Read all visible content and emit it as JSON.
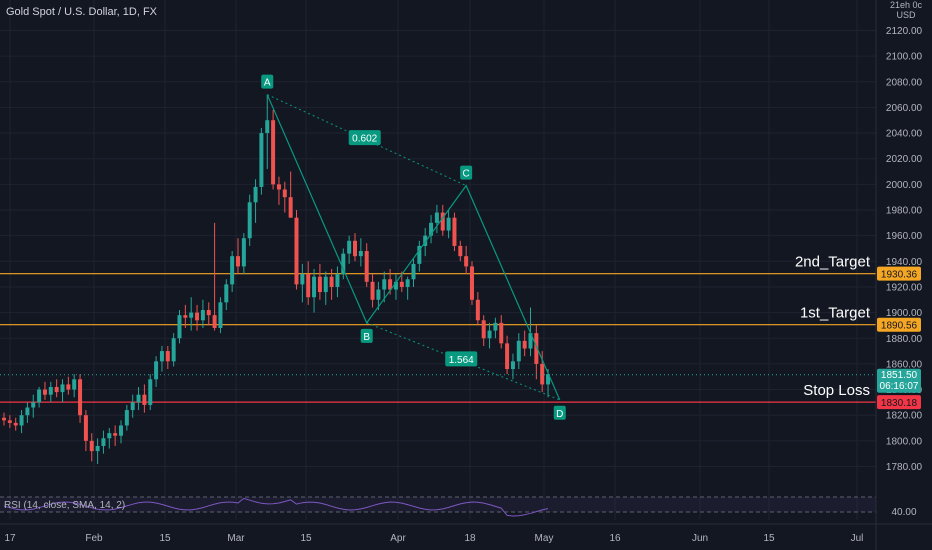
{
  "header": {
    "symbol_title": "Gold Spot / U.S. Dollar, 1D, FX",
    "currency_line1": "21eh 0c",
    "currency_line2": "USD"
  },
  "rsi": {
    "label": "RSI (14, close, SMA, 14, 2)",
    "axis_label": "40.00"
  },
  "price_tags": {
    "last_price": "1851.50",
    "countdown": "06:16:07"
  },
  "colors": {
    "background": "#131722",
    "bull": "#26a69a",
    "bear": "#ef5350",
    "target": "#f5a623",
    "stop": "#f23645",
    "pattern": "#089981",
    "rsi_line": "#7e57c2",
    "grid": "#1f2330"
  },
  "chart_data": {
    "type": "candlestick",
    "ylim": [
      1750,
      2140
    ],
    "y_ticks": [
      "1780.00",
      "1800.00",
      "1820.00",
      "1840.00",
      "1860.00",
      "1880.00",
      "1900.00",
      "1920.00",
      "1940.00",
      "1960.00",
      "1980.00",
      "2000.00",
      "2020.00",
      "2040.00",
      "2060.00",
      "2080.00",
      "2100.00",
      "2120.00"
    ],
    "x_ticks": [
      {
        "label": "17",
        "date": "2022-01-17"
      },
      {
        "label": "Feb",
        "date": "2022-02-01"
      },
      {
        "label": "15",
        "date": "2022-02-15"
      },
      {
        "label": "Mar",
        "date": "2022-03-01"
      },
      {
        "label": "15",
        "date": "2022-03-15"
      },
      {
        "label": "Apr",
        "date": "2022-04-01"
      },
      {
        "label": "18",
        "date": "2022-04-18"
      },
      {
        "label": "May",
        "date": "2022-05-02"
      },
      {
        "label": "16",
        "date": "2022-05-16"
      },
      {
        "label": "Jun",
        "date": "2022-06-01"
      },
      {
        "label": "15",
        "date": "2022-06-15"
      },
      {
        "label": "Jul",
        "date": "2022-07-01"
      }
    ],
    "candles_ohlc": [
      [
        1818,
        1822,
        1812,
        1816
      ],
      [
        1816,
        1820,
        1810,
        1814
      ],
      [
        1814,
        1818,
        1808,
        1812
      ],
      [
        1812,
        1824,
        1806,
        1820
      ],
      [
        1820,
        1830,
        1814,
        1826
      ],
      [
        1826,
        1836,
        1818,
        1830
      ],
      [
        1830,
        1842,
        1826,
        1840
      ],
      [
        1840,
        1846,
        1832,
        1836
      ],
      [
        1836,
        1846,
        1830,
        1842
      ],
      [
        1842,
        1848,
        1834,
        1838
      ],
      [
        1838,
        1848,
        1830,
        1844
      ],
      [
        1844,
        1850,
        1836,
        1840
      ],
      [
        1840,
        1852,
        1834,
        1848
      ],
      [
        1848,
        1852,
        1814,
        1820
      ],
      [
        1820,
        1824,
        1792,
        1800
      ],
      [
        1800,
        1806,
        1784,
        1792
      ],
      [
        1792,
        1802,
        1782,
        1796
      ],
      [
        1796,
        1808,
        1790,
        1802
      ],
      [
        1802,
        1810,
        1794,
        1806
      ],
      [
        1806,
        1812,
        1796,
        1804
      ],
      [
        1804,
        1816,
        1798,
        1812
      ],
      [
        1812,
        1828,
        1808,
        1824
      ],
      [
        1824,
        1836,
        1818,
        1830
      ],
      [
        1830,
        1842,
        1824,
        1836
      ],
      [
        1836,
        1844,
        1822,
        1828
      ],
      [
        1828,
        1852,
        1824,
        1848
      ],
      [
        1848,
        1866,
        1842,
        1862
      ],
      [
        1862,
        1874,
        1854,
        1870
      ],
      [
        1870,
        1874,
        1856,
        1862
      ],
      [
        1862,
        1884,
        1858,
        1880
      ],
      [
        1880,
        1902,
        1876,
        1898
      ],
      [
        1898,
        1906,
        1888,
        1896
      ],
      [
        1896,
        1912,
        1886,
        1900
      ],
      [
        1900,
        1906,
        1886,
        1894
      ],
      [
        1894,
        1910,
        1888,
        1902
      ],
      [
        1902,
        1908,
        1890,
        1898
      ],
      [
        1898,
        1970,
        1886,
        1888
      ],
      [
        1888,
        1912,
        1884,
        1908
      ],
      [
        1908,
        1926,
        1902,
        1922
      ],
      [
        1922,
        1948,
        1916,
        1944
      ],
      [
        1944,
        1958,
        1930,
        1936
      ],
      [
        1936,
        1962,
        1930,
        1958
      ],
      [
        1958,
        1992,
        1952,
        1986
      ],
      [
        1986,
        2004,
        1970,
        1998
      ],
      [
        1998,
        2044,
        1992,
        2040
      ],
      [
        2040,
        2070,
        2012,
        2050
      ],
      [
        2050,
        2058,
        1996,
        2000
      ],
      [
        2000,
        2006,
        1984,
        1996
      ],
      [
        1996,
        2002,
        1978,
        1990
      ],
      [
        1990,
        2010,
        1974,
        1974
      ],
      [
        1974,
        1980,
        1918,
        1922
      ],
      [
        1922,
        1938,
        1908,
        1930
      ],
      [
        1930,
        1940,
        1906,
        1912
      ],
      [
        1912,
        1934,
        1900,
        1928
      ],
      [
        1928,
        1938,
        1910,
        1916
      ],
      [
        1916,
        1932,
        1906,
        1928
      ],
      [
        1928,
        1934,
        1910,
        1920
      ],
      [
        1920,
        1936,
        1912,
        1930
      ],
      [
        1930,
        1950,
        1926,
        1946
      ],
      [
        1946,
        1960,
        1938,
        1956
      ],
      [
        1956,
        1962,
        1940,
        1944
      ],
      [
        1944,
        1958,
        1936,
        1948
      ],
      [
        1948,
        1954,
        1920,
        1924
      ],
      [
        1924,
        1930,
        1904,
        1910
      ],
      [
        1910,
        1924,
        1902,
        1918
      ],
      [
        1918,
        1932,
        1908,
        1926
      ],
      [
        1926,
        1934,
        1914,
        1918
      ],
      [
        1918,
        1930,
        1910,
        1924
      ],
      [
        1924,
        1932,
        1916,
        1920
      ],
      [
        1920,
        1928,
        1910,
        1926
      ],
      [
        1926,
        1942,
        1920,
        1938
      ],
      [
        1938,
        1956,
        1932,
        1952
      ],
      [
        1952,
        1966,
        1944,
        1960
      ],
      [
        1960,
        1976,
        1954,
        1970
      ],
      [
        1970,
        1984,
        1962,
        1978
      ],
      [
        1978,
        1984,
        1960,
        1964
      ],
      [
        1964,
        1980,
        1958,
        1974
      ],
      [
        1974,
        1978,
        1948,
        1952
      ],
      [
        1952,
        1956,
        1940,
        1944
      ],
      [
        1944,
        1952,
        1930,
        1936
      ],
      [
        1936,
        1940,
        1906,
        1910
      ],
      [
        1910,
        1916,
        1890,
        1894
      ],
      [
        1894,
        1898,
        1874,
        1880
      ],
      [
        1880,
        1892,
        1872,
        1886
      ],
      [
        1886,
        1896,
        1880,
        1892
      ],
      [
        1892,
        1898,
        1872,
        1876
      ],
      [
        1876,
        1882,
        1852,
        1856
      ],
      [
        1856,
        1868,
        1848,
        1862
      ],
      [
        1862,
        1884,
        1856,
        1878
      ],
      [
        1878,
        1886,
        1866,
        1872
      ],
      [
        1872,
        1904,
        1866,
        1884
      ],
      [
        1884,
        1890,
        1848,
        1860
      ],
      [
        1860,
        1870,
        1838,
        1844
      ],
      [
        1844,
        1856,
        1834,
        1852
      ]
    ],
    "horizontal_lines": [
      {
        "name": "2nd_Target",
        "price": 1930.36,
        "label": "2nd_Target",
        "tag": "1930.36",
        "color": "#f5a623"
      },
      {
        "name": "1st_Target",
        "price": 1890.56,
        "label": "1st_Target",
        "tag": "1890.56",
        "color": "#f5a623"
      },
      {
        "name": "stop_loss",
        "price": 1830.18,
        "label": "Stop Loss",
        "tag": "1830.18",
        "color": "#f23645"
      }
    ],
    "pattern_points": [
      {
        "label": "A",
        "candle": 45,
        "price": 2070
      },
      {
        "label": "B",
        "candle": 62,
        "price": 1892
      },
      {
        "label": "C",
        "candle": 79,
        "price": 1999
      },
      {
        "label": "D",
        "candle": 95,
        "price": 1832
      }
    ],
    "pattern_ratios": [
      {
        "label": "0.602",
        "between": [
          "A",
          "C"
        ]
      },
      {
        "label": "1.564",
        "between": [
          "B",
          "D"
        ]
      }
    ],
    "last_price": 1851.5
  }
}
